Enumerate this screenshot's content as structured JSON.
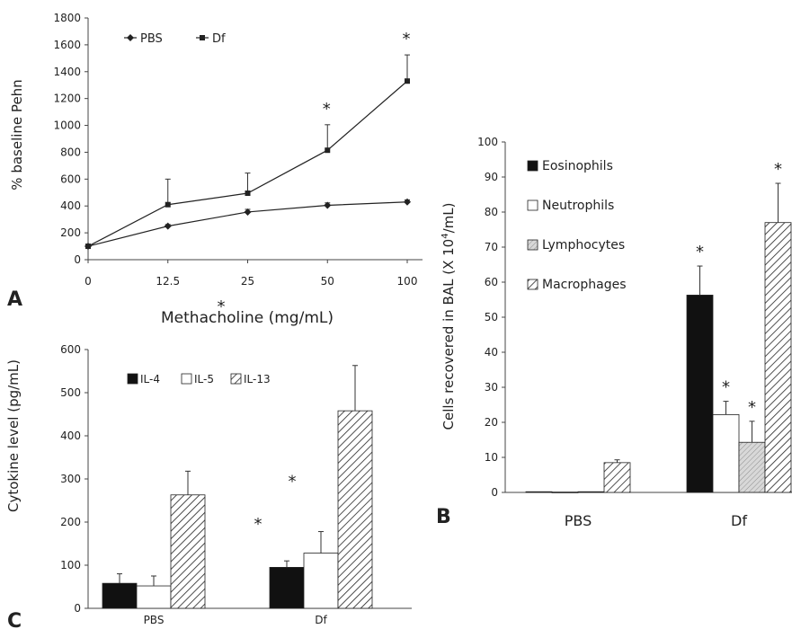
{
  "chart_data": [
    {
      "panel": "A",
      "type": "line",
      "xlabel": "Methacholine (mg/mL)",
      "ylabel": "% baseline Pehn",
      "categories": [
        "0",
        "12.5",
        "25",
        "50",
        "100"
      ],
      "ylim": [
        0,
        1800
      ],
      "yticks": [
        0,
        200,
        400,
        600,
        800,
        1000,
        1200,
        1400,
        1600,
        1800
      ],
      "legend_position": "top-left",
      "grid": false,
      "series": [
        {
          "name": "PBS",
          "marker": "diamond",
          "values": [
            100,
            250,
            355,
            405,
            430
          ],
          "errors": [
            0,
            12,
            20,
            18,
            15
          ]
        },
        {
          "name": "Df",
          "marker": "square",
          "values": [
            100,
            410,
            495,
            815,
            1330
          ],
          "errors": [
            0,
            190,
            150,
            190,
            195
          ]
        }
      ],
      "annotations": [
        {
          "category": "50",
          "text": "*"
        },
        {
          "category": "100",
          "text": "*"
        }
      ]
    },
    {
      "panel": "B",
      "type": "bar",
      "ylabel": "Cells recovered in BAL (X 10",
      "ylabel_superscript": "4",
      "ylabel_suffix": "/mL)",
      "categories": [
        "PBS",
        "Df"
      ],
      "ylim": [
        0,
        100
      ],
      "yticks": [
        0,
        10,
        20,
        30,
        40,
        50,
        60,
        70,
        80,
        90,
        100
      ],
      "legend_position": "top-left",
      "grid": false,
      "series": [
        {
          "name": "Eosinophils",
          "pattern": "solid",
          "values": [
            0.2,
            56.3
          ],
          "errors": [
            0,
            8.3
          ]
        },
        {
          "name": "Neutrophils",
          "pattern": "open",
          "values": [
            0.1,
            22.2
          ],
          "errors": [
            0,
            3.8
          ]
        },
        {
          "name": "Lymphocytes",
          "pattern": "stipple",
          "values": [
            0.2,
            14.3
          ],
          "errors": [
            0,
            6.0
          ]
        },
        {
          "name": "Macrophages",
          "pattern": "hatch",
          "values": [
            8.5,
            77.0
          ],
          "errors": [
            0.8,
            11.2
          ]
        }
      ],
      "annotations": [
        {
          "category": "Df",
          "series": "Eosinophils",
          "text": "*"
        },
        {
          "category": "Df",
          "series": "Neutrophils",
          "text": "*"
        },
        {
          "category": "Df",
          "series": "Lymphocytes",
          "text": "*"
        },
        {
          "category": "Df",
          "series": "Macrophages",
          "text": "*"
        }
      ]
    },
    {
      "panel": "C",
      "type": "bar",
      "ylabel": "Cytokine level (pg/mL)",
      "categories": [
        "PBS",
        "Df"
      ],
      "ylim": [
        0,
        600
      ],
      "yticks": [
        0,
        100,
        200,
        300,
        400,
        500,
        600
      ],
      "legend_position": "top-left",
      "grid": false,
      "series": [
        {
          "name": "IL-4",
          "pattern": "solid",
          "values": [
            58,
            95
          ],
          "errors": [
            22,
            15
          ]
        },
        {
          "name": "IL-5",
          "pattern": "open",
          "values": [
            52,
            128
          ],
          "errors": [
            23,
            50
          ]
        },
        {
          "name": "IL-13",
          "pattern": "hatch",
          "values": [
            263,
            458
          ],
          "errors": [
            55,
            105
          ]
        }
      ],
      "annotations": [
        {
          "category": "Df",
          "series": "IL-4",
          "text": "*"
        },
        {
          "category": "Df",
          "series": "IL-5",
          "text": "*"
        },
        {
          "category": "Df",
          "series": "IL-13",
          "text": "*"
        }
      ]
    }
  ]
}
